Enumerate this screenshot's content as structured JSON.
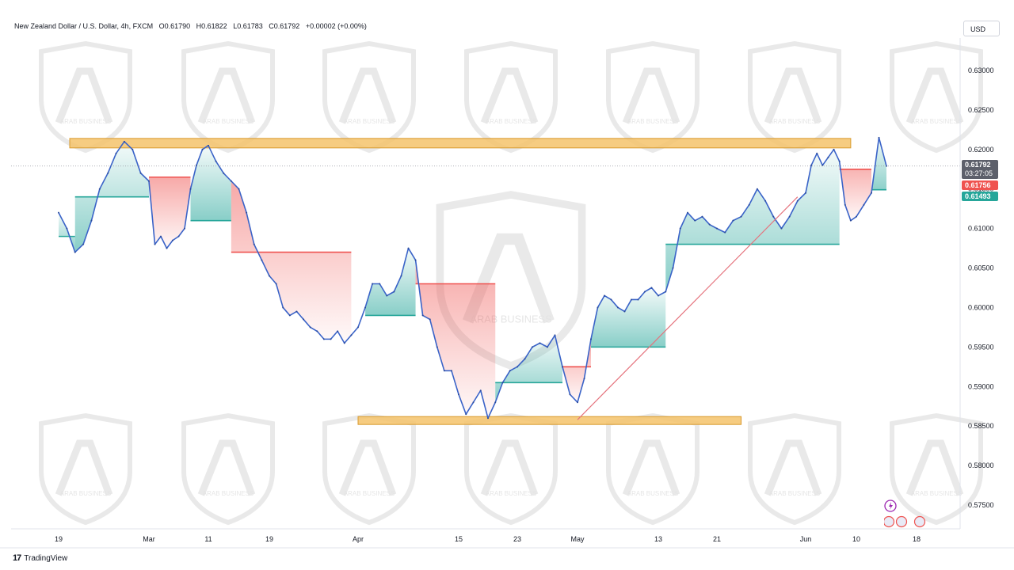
{
  "header": {
    "symbol_title": "New Zealand Dollar / U.S. Dollar, 4h, FXCM",
    "open": "O0.61790",
    "high": "H0.61822",
    "low": "L0.61783",
    "close": "C0.61792",
    "change": "+0.00002 (+0.00%)"
  },
  "currency_button": "USD",
  "footer": {
    "brand": "TradingView"
  },
  "price_labels": {
    "last_price": "0.61792",
    "countdown": "03:27:05",
    "supertrend_upper": "0.61756",
    "supertrend_lower": "0.61493"
  },
  "watermark": {
    "text": "ARAB BUSINESS"
  },
  "colors": {
    "bullish": "#26a69a",
    "bearish": "#ef5350",
    "candle_line": "#3a63c8",
    "zone": "#f5c36b",
    "trendline": "#e5737d"
  },
  "chart_data": {
    "type": "line",
    "title": "New Zealand Dollar / U.S. Dollar, 4h, FXCM",
    "y_axis_side": "right",
    "ylim": [
      0.5725,
      0.6335
    ],
    "y_ticks": [
      "0.63000",
      "0.62500",
      "0.62000",
      "0.61500",
      "0.61000",
      "0.60500",
      "0.60000",
      "0.59500",
      "0.59000",
      "0.58500",
      "0.58000",
      "0.57500"
    ],
    "y_tick_values": [
      0.63,
      0.625,
      0.62,
      0.615,
      0.61,
      0.605,
      0.6,
      0.595,
      0.59,
      0.585,
      0.58,
      0.575
    ],
    "x_ticks": [
      "19",
      "Mar",
      "11",
      "19",
      "Apr",
      "15",
      "23",
      "May",
      "13",
      "21",
      "Jun",
      "10",
      "18"
    ],
    "x_tick_dates": [
      "2024-02-19",
      "2024-03-01",
      "2024-03-11",
      "2024-03-19",
      "2024-04-01",
      "2024-04-15",
      "2024-04-23",
      "2024-05-01",
      "2024-05-13",
      "2024-05-21",
      "2024-06-01",
      "2024-06-10",
      "2024-06-18"
    ],
    "x_range": [
      "2024-02-19",
      "2024-06-18"
    ],
    "series": [
      {
        "values": [
          [
            "2024-02-19",
            0.612
          ],
          [
            "2024-02-20",
            0.61
          ],
          [
            "2024-02-21",
            0.607
          ],
          [
            "2024-02-22",
            0.608
          ],
          [
            "2024-02-23",
            0.611
          ],
          [
            "2024-02-24",
            0.615
          ],
          [
            "2024-02-25",
            0.617
          ],
          [
            "2024-02-26",
            0.6195
          ],
          [
            "2024-02-27",
            0.621
          ],
          [
            "2024-02-28",
            0.62
          ],
          [
            "2024-02-29",
            0.617
          ],
          [
            "2024-03-01",
            0.616
          ],
          [
            "2024-03-02",
            0.608
          ],
          [
            "2024-03-03",
            0.609
          ],
          [
            "2024-03-04",
            0.6075
          ],
          [
            "2024-03-05",
            0.6085
          ],
          [
            "2024-03-06",
            0.609
          ],
          [
            "2024-03-07",
            0.61
          ],
          [
            "2024-03-08",
            0.615
          ],
          [
            "2024-03-09",
            0.618
          ],
          [
            "2024-03-10",
            0.62
          ],
          [
            "2024-03-11",
            0.6205
          ],
          [
            "2024-03-12",
            0.6185
          ],
          [
            "2024-03-13",
            0.617
          ],
          [
            "2024-03-14",
            0.616
          ],
          [
            "2024-03-15",
            0.615
          ],
          [
            "2024-03-16",
            0.612
          ],
          [
            "2024-03-17",
            0.608
          ],
          [
            "2024-03-18",
            0.606
          ],
          [
            "2024-03-19",
            0.604
          ],
          [
            "2024-03-20",
            0.603
          ],
          [
            "2024-03-21",
            0.6
          ],
          [
            "2024-03-22",
            0.599
          ],
          [
            "2024-03-23",
            0.5995
          ],
          [
            "2024-03-24",
            0.5985
          ],
          [
            "2024-03-25",
            0.5975
          ],
          [
            "2024-03-26",
            0.597
          ],
          [
            "2024-03-27",
            0.596
          ],
          [
            "2024-03-28",
            0.596
          ],
          [
            "2024-03-29",
            0.597
          ],
          [
            "2024-03-30",
            0.5955
          ],
          [
            "2024-03-31",
            0.5965
          ],
          [
            "2024-04-01",
            0.5975
          ],
          [
            "2024-04-02",
            0.6
          ],
          [
            "2024-04-03",
            0.603
          ],
          [
            "2024-04-04",
            0.603
          ],
          [
            "2024-04-05",
            0.6015
          ],
          [
            "2024-04-06",
            0.602
          ],
          [
            "2024-04-07",
            0.604
          ],
          [
            "2024-04-08",
            0.6075
          ],
          [
            "2024-04-09",
            0.606
          ],
          [
            "2024-04-10",
            0.599
          ],
          [
            "2024-04-11",
            0.5985
          ],
          [
            "2024-04-12",
            0.595
          ],
          [
            "2024-04-13",
            0.592
          ],
          [
            "2024-04-14",
            0.592
          ],
          [
            "2024-04-15",
            0.589
          ],
          [
            "2024-04-16",
            0.5865
          ],
          [
            "2024-04-17",
            0.588
          ],
          [
            "2024-04-18",
            0.5895
          ],
          [
            "2024-04-19",
            0.586
          ],
          [
            "2024-04-20",
            0.588
          ],
          [
            "2024-04-21",
            0.5905
          ],
          [
            "2024-04-22",
            0.592
          ],
          [
            "2024-04-23",
            0.5925
          ],
          [
            "2024-04-24",
            0.5935
          ],
          [
            "2024-04-25",
            0.595
          ],
          [
            "2024-04-26",
            0.5955
          ],
          [
            "2024-04-27",
            0.595
          ],
          [
            "2024-04-28",
            0.5965
          ],
          [
            "2024-04-29",
            0.5925
          ],
          [
            "2024-04-30",
            0.589
          ],
          [
            "2024-05-01",
            0.588
          ],
          [
            "2024-05-02",
            0.591
          ],
          [
            "2024-05-03",
            0.596
          ],
          [
            "2024-05-04",
            0.6
          ],
          [
            "2024-05-05",
            0.6015
          ],
          [
            "2024-05-06",
            0.601
          ],
          [
            "2024-05-07",
            0.6
          ],
          [
            "2024-05-08",
            0.5995
          ],
          [
            "2024-05-09",
            0.601
          ],
          [
            "2024-05-10",
            0.601
          ],
          [
            "2024-05-11",
            0.602
          ],
          [
            "2024-05-12",
            0.6025
          ],
          [
            "2024-05-13",
            0.6015
          ],
          [
            "2024-05-14",
            0.602
          ],
          [
            "2024-05-15",
            0.605
          ],
          [
            "2024-05-16",
            0.61
          ],
          [
            "2024-05-17",
            0.612
          ],
          [
            "2024-05-18",
            0.611
          ],
          [
            "2024-05-19",
            0.6115
          ],
          [
            "2024-05-20",
            0.6105
          ],
          [
            "2024-05-21",
            0.61
          ],
          [
            "2024-05-22",
            0.6095
          ],
          [
            "2024-05-23",
            0.611
          ],
          [
            "2024-05-24",
            0.6115
          ],
          [
            "2024-05-25",
            0.613
          ],
          [
            "2024-05-26",
            0.615
          ],
          [
            "2024-05-27",
            0.6135
          ],
          [
            "2024-05-28",
            0.6115
          ],
          [
            "2024-05-29",
            0.61
          ],
          [
            "2024-05-30",
            0.6115
          ],
          [
            "2024-05-31",
            0.6135
          ],
          [
            "2024-06-01",
            0.6145
          ],
          [
            "2024-06-02",
            0.618
          ],
          [
            "2024-06-03",
            0.6195
          ],
          [
            "2024-06-04",
            0.618
          ],
          [
            "2024-06-05",
            0.619
          ],
          [
            "2024-06-06",
            0.62
          ],
          [
            "2024-06-07",
            0.6185
          ],
          [
            "2024-06-08",
            0.613
          ],
          [
            "2024-06-09",
            0.611
          ],
          [
            "2024-06-10",
            0.6115
          ],
          [
            "2024-06-11",
            0.613
          ],
          [
            "2024-06-12",
            0.6145
          ],
          [
            "2024-06-13",
            0.6215
          ],
          [
            "2024-06-14",
            0.6179
          ]
        ]
      }
    ],
    "supertrend_segments": [
      {
        "direction": "up",
        "from": "2024-02-19",
        "to": "2024-02-21",
        "level": 0.609
      },
      {
        "direction": "up",
        "from": "2024-02-21",
        "to": "2024-03-01",
        "level": 0.614
      },
      {
        "direction": "down",
        "from": "2024-03-01",
        "to": "2024-03-08",
        "level": 0.6165
      },
      {
        "direction": "up",
        "from": "2024-03-08",
        "to": "2024-03-14",
        "level": 0.611
      },
      {
        "direction": "down",
        "from": "2024-03-14",
        "to": "2024-03-31",
        "level": 0.607
      },
      {
        "direction": "up",
        "from": "2024-04-02",
        "to": "2024-04-09",
        "level": 0.599
      },
      {
        "direction": "down",
        "from": "2024-04-09",
        "to": "2024-04-20",
        "level": 0.603
      },
      {
        "direction": "up",
        "from": "2024-04-20",
        "to": "2024-04-29",
        "level": 0.5905
      },
      {
        "direction": "down",
        "from": "2024-04-29",
        "to": "2024-05-03",
        "level": 0.5925
      },
      {
        "direction": "up",
        "from": "2024-05-03",
        "to": "2024-05-14",
        "level": 0.595
      },
      {
        "direction": "up",
        "from": "2024-05-14",
        "to": "2024-06-07",
        "level": 0.608
      },
      {
        "direction": "down",
        "from": "2024-06-07",
        "to": "2024-06-12",
        "level": 0.6175
      },
      {
        "direction": "up",
        "from": "2024-06-12",
        "to": "2024-06-14",
        "level": 0.6149
      }
    ],
    "zones": [
      {
        "from": "2024-02-19",
        "to": "2024-06-09",
        "low": 0.6202,
        "high": 0.6214
      },
      {
        "from": "2024-04-01",
        "to": "2024-05-24",
        "low": 0.5852,
        "high": 0.5862
      }
    ],
    "trendline": {
      "from": [
        "2024-05-01",
        0.5858
      ],
      "to": [
        "2024-05-31",
        0.614
      ]
    },
    "grid": false,
    "legend": "none"
  }
}
